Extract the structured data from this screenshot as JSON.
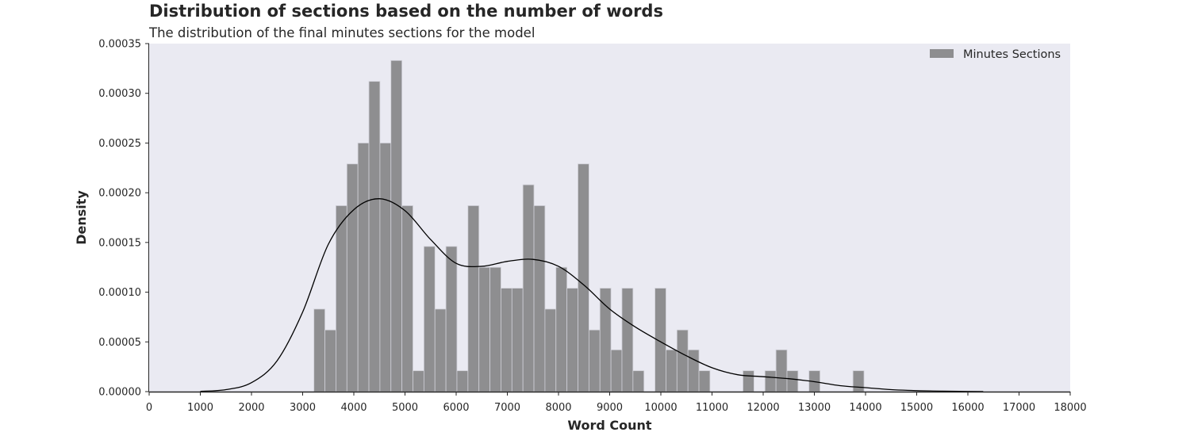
{
  "chart_data": {
    "type": "bar",
    "title": "Distribution of sections based on the number of words",
    "subtitle": "The distribution of the final minutes sections for the model",
    "xlabel": "Word Count",
    "ylabel": "Density",
    "xlim": [
      0,
      18000
    ],
    "ylim": [
      0,
      0.00035
    ],
    "xticks": [
      0,
      1000,
      2000,
      3000,
      4000,
      5000,
      6000,
      7000,
      8000,
      9000,
      10000,
      11000,
      12000,
      13000,
      14000,
      15000,
      16000,
      17000,
      18000
    ],
    "xtick_labels": [
      "0",
      "1000",
      "2000",
      "3000",
      "4000",
      "5000",
      "6000",
      "7000",
      "8000",
      "9000",
      "10000",
      "11000",
      "12000",
      "13000",
      "14000",
      "15000",
      "16000",
      "17000",
      "18000"
    ],
    "yticks": [
      0,
      5e-05,
      0.0001,
      0.00015,
      0.0002,
      0.00025,
      0.0003,
      0.00035
    ],
    "ytick_labels": [
      "0.00000",
      "0.00005",
      "0.00010",
      "0.00015",
      "0.00020",
      "0.00025",
      "0.00030",
      "0.00035"
    ],
    "grid": false,
    "legend_position": "top-right",
    "background_color": "#eaeaf2",
    "bar_color": "#8e8e90",
    "bar_edge_color": "#d0d0d8",
    "line_color": "#000000",
    "bin_width": 215,
    "series": [
      {
        "name": "Minutes Sections",
        "type": "histogram",
        "bin_starts": [
          3220,
          3435,
          3650,
          3865,
          4080,
          4295,
          4510,
          4725,
          4940,
          5155,
          5370,
          5585,
          5800,
          6015,
          6230,
          6445,
          6660,
          6875,
          7090,
          7305,
          7520,
          7735,
          7950,
          8165,
          8380,
          8595,
          8810,
          9025,
          9240,
          9455,
          9670,
          9885,
          10100,
          10315,
          10530,
          10745,
          10960,
          11175,
          11390,
          11605,
          11820,
          12035,
          12250,
          12465,
          12680,
          12895,
          13110,
          13325,
          13540,
          13755
        ],
        "values": [
          8.3e-05,
          6.2e-05,
          0.000187,
          0.000229,
          0.00025,
          0.000312,
          0.00025,
          0.000333,
          0.000187,
          2.1e-05,
          0.000146,
          8.3e-05,
          0.000146,
          2.1e-05,
          0.000187,
          0.000125,
          0.000125,
          0.000104,
          0.000104,
          0.000208,
          0.000187,
          8.3e-05,
          0.000125,
          0.000104,
          0.000229,
          6.2e-05,
          0.000104,
          4.2e-05,
          0.000104,
          2.1e-05,
          0,
          0.000104,
          4.2e-05,
          6.2e-05,
          4.2e-05,
          2.1e-05,
          0,
          0,
          0,
          2.1e-05,
          0,
          2.1e-05,
          4.2e-05,
          2.1e-05,
          0,
          2.1e-05,
          0,
          0,
          0,
          2.1e-05
        ]
      },
      {
        "type": "line",
        "x": [
          1000,
          1500,
          2000,
          2500,
          3000,
          3500,
          4000,
          4500,
          5000,
          5500,
          6000,
          6500,
          7000,
          7500,
          8000,
          8500,
          9000,
          9500,
          10000,
          10500,
          11000,
          11500,
          12000,
          12500,
          13000,
          13500,
          14000,
          14500,
          15000,
          15500,
          16000,
          16300
        ],
        "values": [
          3e-07,
          2e-06,
          9e-06,
          3.1e-05,
          8e-05,
          0.000148,
          0.000183,
          0.000194,
          0.000182,
          0.000153,
          0.000129,
          0.000126,
          0.000131,
          0.000133,
          0.000126,
          0.000107,
          8.3e-05,
          6.5e-05,
          5e-05,
          3.6e-05,
          2.4e-05,
          1.7e-05,
          1.5e-05,
          1.3e-05,
          1e-05,
          6e-06,
          4e-06,
          2e-06,
          1e-06,
          5e-07,
          2e-07,
          1e-07
        ]
      }
    ]
  }
}
